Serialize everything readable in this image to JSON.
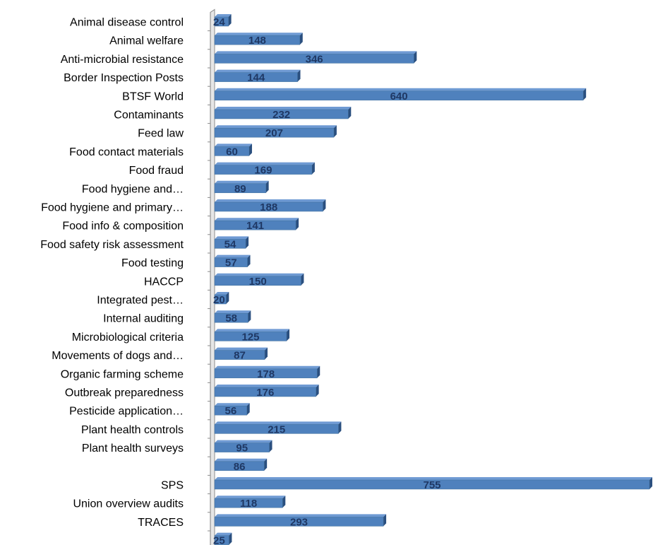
{
  "chart_data": {
    "type": "bar",
    "orientation": "horizontal",
    "style": "3d",
    "bar_color": "#4f81bd",
    "bar_top_color": "#6f9ad3",
    "bar_side_color": "#2a4f7f",
    "label_color": "#1f3864",
    "categories": [
      "Animal disease control",
      "Animal welfare",
      "Anti-microbial resistance",
      "Border Inspection Posts",
      "BTSF World",
      "Contaminants",
      "Feed law",
      "Food contact materials",
      "Food fraud",
      "Food hygiene and…",
      "Food hygiene and primary…",
      "Food info & composition",
      "Food safety risk assessment",
      "Food testing",
      "HACCP",
      "Integrated pest…",
      "Internal auditing",
      "Microbiological criteria",
      "Movements of dogs and…",
      "Organic farming scheme",
      "Outbreak preparedness",
      "Pesticide application…",
      "Plant health controls",
      "Plant health surveys",
      "",
      "SPS",
      "Union overview audits",
      "TRACES",
      ""
    ],
    "values": [
      24,
      148,
      346,
      144,
      640,
      232,
      207,
      60,
      169,
      89,
      188,
      141,
      54,
      57,
      150,
      20,
      58,
      125,
      87,
      178,
      176,
      56,
      215,
      95,
      86,
      755,
      118,
      293,
      25
    ],
    "xlim": [
      0,
      755
    ],
    "grid": false,
    "legend": "none",
    "data_labels": true
  }
}
